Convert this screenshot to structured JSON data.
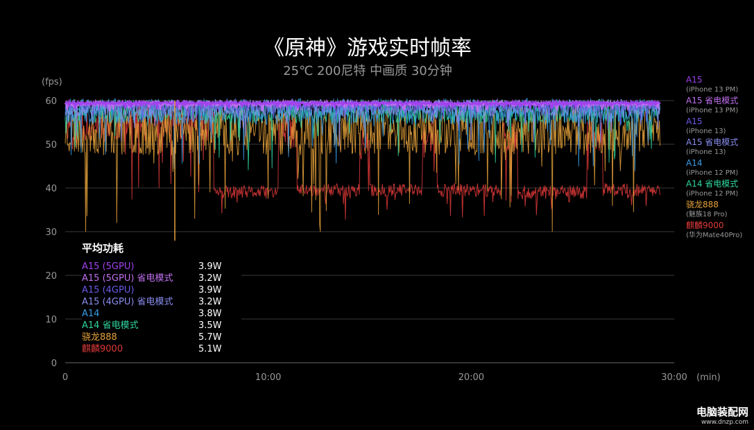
{
  "chart_data": {
    "type": "line",
    "title": "《原神》游戏实时帧率",
    "subtitle": "25℃ 200尼特 中画质 30分钟",
    "ylabel": "(fps)",
    "xlabel": "(min)",
    "ylim": [
      0,
      60
    ],
    "xlim": [
      0,
      30
    ],
    "y_ticks": [
      0,
      10,
      20,
      30,
      40,
      50,
      60
    ],
    "x_ticks": [
      {
        "value": 0,
        "label": "0"
      },
      {
        "value": 10,
        "label": "10:00"
      },
      {
        "value": 20,
        "label": "20:00"
      },
      {
        "value": 30,
        "label": "30:00"
      }
    ],
    "grid": "horizontal",
    "series": [
      {
        "name": "麒麟9000",
        "color": "#e03a3a",
        "base": 39.5,
        "noise": 1.6,
        "seed": 11,
        "segments": [
          [
            0,
            7.3,
            55,
            4.5
          ],
          [
            7.3,
            10.5,
            39,
            1.5
          ],
          [
            10.5,
            11.4,
            53,
            4
          ],
          [
            11.4,
            14.5,
            39.5,
            1.5
          ],
          [
            14.5,
            15.0,
            50,
            5
          ],
          [
            15.0,
            17.6,
            39.5,
            1.5
          ],
          [
            17.6,
            18.3,
            52,
            4
          ],
          [
            18.3,
            21.5,
            39.5,
            1.5
          ],
          [
            21.5,
            22.3,
            52,
            4
          ],
          [
            22.3,
            25.7,
            39,
            1.6
          ],
          [
            25.7,
            26.5,
            52,
            4
          ],
          [
            26.5,
            29.3,
            39.5,
            1.6
          ]
        ]
      },
      {
        "name": "骁龙888",
        "color": "#e7a33b",
        "base": 53,
        "noise": 5.5,
        "seed": 23
      },
      {
        "name": "A14 省电模式",
        "color": "#2fd6a0",
        "base": 57.5,
        "noise": 2.8,
        "seed": 37
      },
      {
        "name": "A14",
        "color": "#3a9de6",
        "base": 57.5,
        "noise": 3.0,
        "seed": 41
      },
      {
        "name": "A15 省电模式",
        "color": "#8a8df0",
        "base": 58.3,
        "noise": 2.0,
        "seed": 53
      },
      {
        "name": "A15",
        "color": "#6a5ae8",
        "base": 58.8,
        "noise": 1.2,
        "seed": 61
      },
      {
        "name": "A15 省电模式",
        "color": "#c070f0",
        "base": 59.3,
        "noise": 0.4,
        "seed": 67
      },
      {
        "name": "A15",
        "color": "#a040ee",
        "base": 59.4,
        "noise": 0.3,
        "seed": 71
      }
    ],
    "annotations": [
      {
        "x": 5.4,
        "y_from": 60,
        "y_to": 25,
        "color": "#e7a33b",
        "note": "spike"
      }
    ]
  },
  "legend": [
    {
      "chip": "A15",
      "device": "(iPhone 13 PM)",
      "color": "#a040ee"
    },
    {
      "chip": "A15 省电模式",
      "device": "(iPhone 13 PM)",
      "color": "#c070f0"
    },
    {
      "chip": "A15",
      "device": "(iPhone 13)",
      "color": "#6a5ae8"
    },
    {
      "chip": "A15 省电模式",
      "device": "(iPhone 13)",
      "color": "#8a8df0"
    },
    {
      "chip": "A14",
      "device": "(iPhone 12 PM)",
      "color": "#3a9de6"
    },
    {
      "chip": "A14 省电模式",
      "device": "(iPhone 12 PM)",
      "color": "#2fd6a0"
    },
    {
      "chip": "骁龙888",
      "device": "(魅族18 Pro)",
      "color": "#e7a33b"
    },
    {
      "chip": "麒麟9000",
      "device": "(华为Mate40Pro)",
      "color": "#e03a3a"
    }
  ],
  "power": {
    "title": "平均功耗",
    "rows": [
      {
        "name": "A15 (5GPU)",
        "value": "3.9W",
        "color": "#a040ee"
      },
      {
        "name": "A15 (5GPU) 省电模式",
        "value": "3.2W",
        "color": "#c070f0"
      },
      {
        "name": "A15 (4GPU)",
        "value": "3.9W",
        "color": "#6a5ae8"
      },
      {
        "name": "A15 (4GPU) 省电模式",
        "value": "3.2W",
        "color": "#8a8df0"
      },
      {
        "name": "A14",
        "value": "3.8W",
        "color": "#3a9de6"
      },
      {
        "name": "A14 省电模式",
        "value": "3.5W",
        "color": "#2fd6a0"
      },
      {
        "name": "骁龙888",
        "value": "5.7W",
        "color": "#e7a33b"
      },
      {
        "name": "麒麟9000",
        "value": "5.1W",
        "color": "#e03a3a"
      }
    ]
  },
  "watermark": {
    "name": "电脑装配网",
    "url": "www.dnzp.com"
  }
}
